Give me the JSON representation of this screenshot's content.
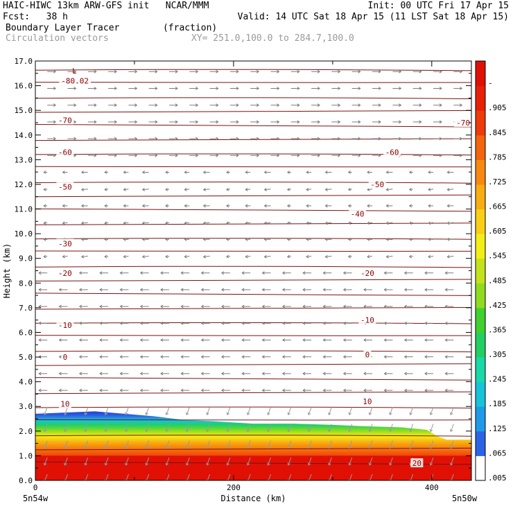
{
  "header": {
    "model_line": "HAIC-HIWC 13km ARW-GFS init   NCAR/MMM",
    "init_line": "Init: 00 UTC Fri 17 Apr 15",
    "fcst_line": "Fcst:   38 h",
    "valid_line": "Valid: 14 UTC Sat 18 Apr 15 (11 LST Sat 18 Apr 15)",
    "field_line": "Boundary Layer Tracer        (fraction)",
    "vector_line": "Circulation vectors",
    "xy_line": "XY= 251.0,100.0 to 284.7,100.0"
  },
  "chart_data": {
    "type": "heatmap",
    "xlabel": "Distance (km)",
    "ylabel": "Height (km)",
    "xlim": [
      0,
      440
    ],
    "ylim": [
      0,
      17
    ],
    "x_ticks": [
      "0",
      "200",
      "400"
    ],
    "x_end_labels": {
      "left": "5n54w",
      "right": "5n50w"
    },
    "y_ticks": [
      "0.0",
      "1.0",
      "2.0",
      "3.0",
      "4.0",
      "5.0",
      "6.0",
      "7.0",
      "8.0",
      "9.0",
      "10.0",
      "11.0",
      "12.0",
      "13.0",
      "14.0",
      "15.0",
      "16.0",
      "17.0"
    ],
    "colorbar_labels": [
      ".005",
      ".065",
      ".125",
      ".185",
      ".245",
      ".305",
      ".365",
      ".425",
      ".485",
      ".545",
      ".605",
      ".665",
      ".725",
      ".785",
      ".845",
      ".905",
      "-"
    ],
    "colorbar_colors": [
      "#ffffff",
      "#2b63e6",
      "#1e9be8",
      "#17c3d8",
      "#19d9a6",
      "#22d062",
      "#3fd12c",
      "#8fdc1e",
      "#c4e21a",
      "#f3ee17",
      "#f8cf14",
      "#f8ad12",
      "#f8880f",
      "#f4640c",
      "#ef3a0a",
      "#e82007",
      "#e01005"
    ],
    "contour_labels": [
      {
        "text": "-80.02",
        "x": 40,
        "y": 16.2
      },
      {
        "text": "-70",
        "x": 30,
        "y": 14.6
      },
      {
        "text": "-70",
        "x": 440,
        "y": 14.5
      },
      {
        "text": "-60",
        "x": 30,
        "y": 13.3
      },
      {
        "text": "-60",
        "x": 360,
        "y": 13.3
      },
      {
        "text": "-50",
        "x": 30,
        "y": 11.9
      },
      {
        "text": "-50",
        "x": 345,
        "y": 12.0
      },
      {
        "text": "-40",
        "x": 325,
        "y": 10.8
      },
      {
        "text": "-30",
        "x": 30,
        "y": 9.6
      },
      {
        "text": "-20",
        "x": 30,
        "y": 8.4
      },
      {
        "text": "-20",
        "x": 335,
        "y": 8.4
      },
      {
        "text": "-10",
        "x": 30,
        "y": 6.3
      },
      {
        "text": "-10",
        "x": 335,
        "y": 6.5
      },
      {
        "text": "0",
        "x": 30,
        "y": 5.0
      },
      {
        "text": "0",
        "x": 335,
        "y": 5.1
      },
      {
        "text": "10",
        "x": 30,
        "y": 3.1
      },
      {
        "text": "10",
        "x": 335,
        "y": 3.2
      },
      {
        "text": "20",
        "x": 385,
        "y": 0.7
      }
    ],
    "low_marker": {
      "text": "L",
      "x": 40,
      "y": 16.6
    },
    "tracer_top_km": [
      {
        "x": 0,
        "top": 2.7
      },
      {
        "x": 30,
        "top": 2.75
      },
      {
        "x": 60,
        "top": 2.8
      },
      {
        "x": 90,
        "top": 2.7
      },
      {
        "x": 120,
        "top": 2.6
      },
      {
        "x": 150,
        "top": 2.45
      },
      {
        "x": 180,
        "top": 2.4
      },
      {
        "x": 220,
        "top": 2.3
      },
      {
        "x": 260,
        "top": 2.3
      },
      {
        "x": 300,
        "top": 2.25
      },
      {
        "x": 330,
        "top": 2.2
      },
      {
        "x": 370,
        "top": 2.15
      },
      {
        "x": 395,
        "top": 2.05
      },
      {
        "x": 405,
        "top": 1.8
      },
      {
        "x": 415,
        "top": 1.65
      },
      {
        "x": 440,
        "top": 1.65
      }
    ]
  }
}
